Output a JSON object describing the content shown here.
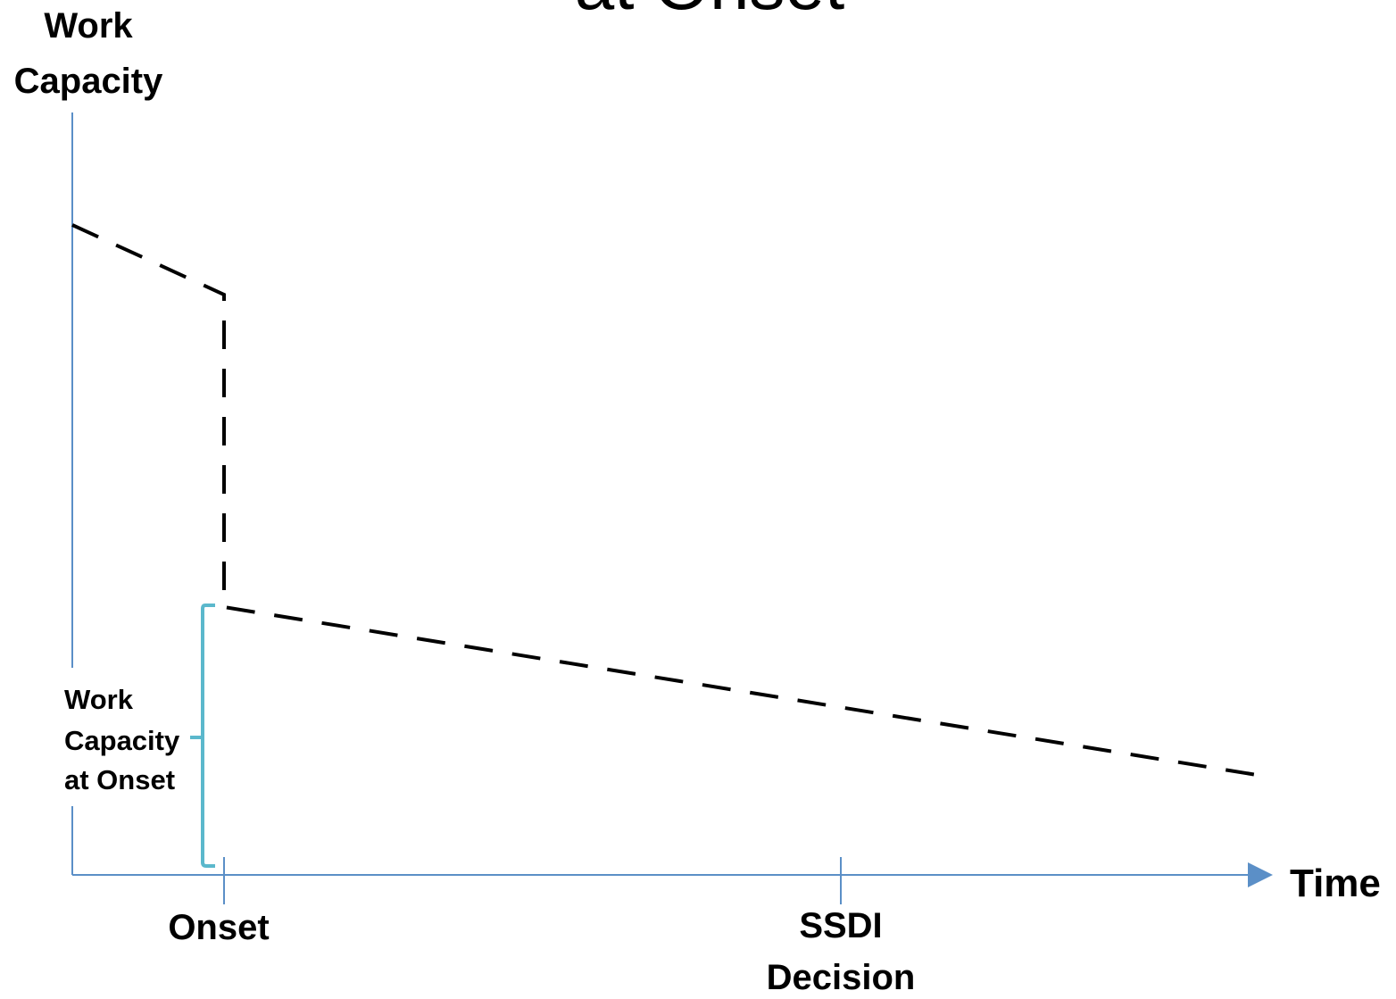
{
  "title_fragment": "at Onset",
  "y_axis": {
    "label_line1": "Work",
    "label_line2": "Capacity"
  },
  "x_axis": {
    "label": "Time",
    "tick_onset": "Onset",
    "tick_ssdi_line1": "SSDI",
    "tick_ssdi_line2": "Decision"
  },
  "annotation": {
    "line1": "Work",
    "line2": "Capacity",
    "line3": "at Onset"
  },
  "colors": {
    "axis": "#5b8fc7",
    "trajectory": "#000000",
    "bracket": "#5bb8cc"
  }
}
